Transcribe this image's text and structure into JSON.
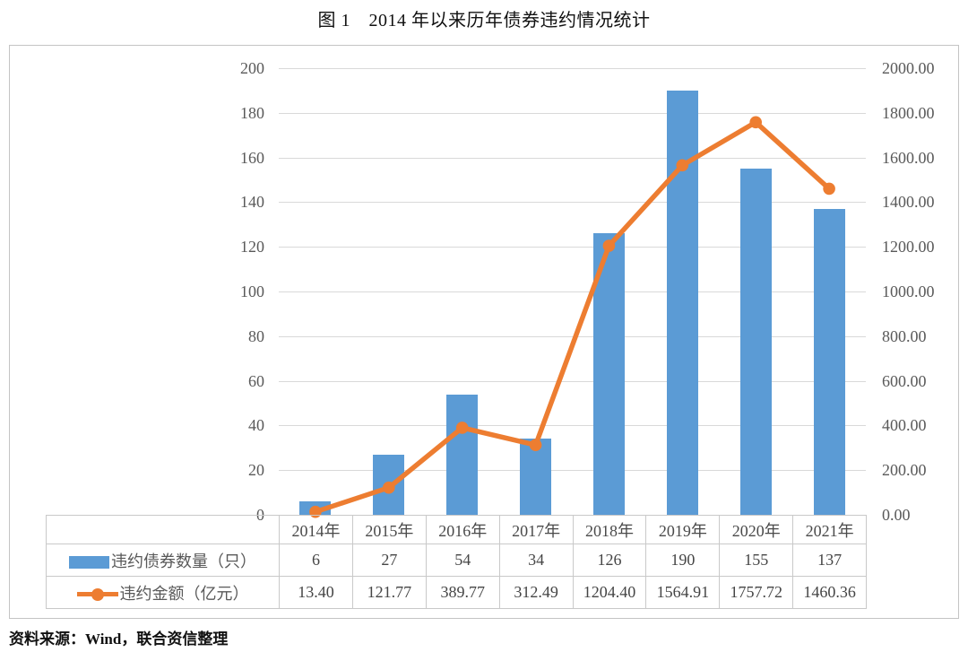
{
  "page": {
    "title": "图 1　2014 年以来历年债券违约情况统计",
    "source_note": "资料来源：Wind，联合资信整理"
  },
  "colors": {
    "bar": "#5b9bd5",
    "line": "#ed7d31",
    "gridline": "#d9d9d9",
    "frame_border": "#c4c4c4",
    "axis_text": "#595959",
    "table_text": "#454545"
  },
  "chart_data": {
    "type": "bar",
    "subtype": "bar-line-combo-dual-axis",
    "title": "图 1　2014 年以来历年债券违约情况统计",
    "categories": [
      "2014年",
      "2015年",
      "2016年",
      "2017年",
      "2018年",
      "2019年",
      "2020年",
      "2021年"
    ],
    "series": [
      {
        "name": "违约债券数量（只）",
        "type": "bar",
        "axis": "left",
        "color": "#5b9bd5",
        "values": [
          6,
          27,
          54,
          34,
          126,
          190,
          155,
          137
        ],
        "values_display": [
          "6",
          "27",
          "54",
          "34",
          "126",
          "190",
          "155",
          "137"
        ]
      },
      {
        "name": "违约金额（亿元）",
        "type": "line",
        "axis": "right",
        "color": "#ed7d31",
        "values": [
          13.4,
          121.77,
          389.77,
          312.49,
          1204.4,
          1564.91,
          1757.72,
          1460.36
        ],
        "values_display": [
          "13.40",
          "121.77",
          "389.77",
          "312.49",
          "1204.40",
          "1564.91",
          "1757.72",
          "1460.36"
        ]
      }
    ],
    "left_axis": {
      "min": 0,
      "max": 200,
      "step": 20,
      "tick_labels": [
        "0",
        "20",
        "40",
        "60",
        "80",
        "100",
        "120",
        "140",
        "160",
        "180",
        "200"
      ]
    },
    "right_axis": {
      "min": 0,
      "max": 2000,
      "step": 200,
      "tick_labels": [
        "0.00",
        "200.00",
        "400.00",
        "600.00",
        "800.00",
        "1000.00",
        "1200.00",
        "1400.00",
        "1600.00",
        "1800.00",
        "2000.00"
      ]
    },
    "grid": true,
    "legend_position": "data-table-left",
    "xlabel": "",
    "ylabel_left": "",
    "ylabel_right": ""
  }
}
